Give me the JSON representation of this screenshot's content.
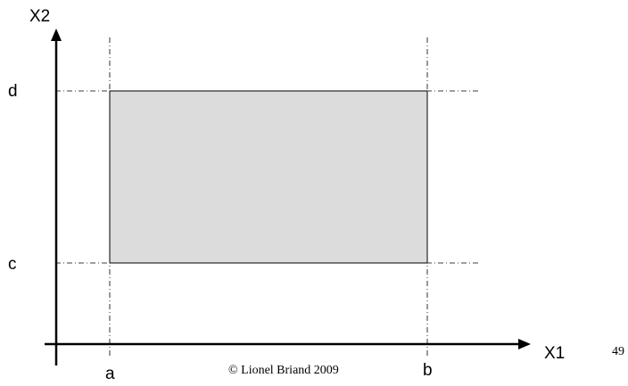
{
  "axes": {
    "y_label": "X2",
    "x_label": "X1"
  },
  "bounds": {
    "x_lower": "a",
    "x_upper": "b",
    "y_lower": "c",
    "y_upper": "d"
  },
  "footer": {
    "copyright": "© Lionel Briand 2009",
    "page_number": "49"
  },
  "colors": {
    "region_fill": "#dcdcdc",
    "line": "#000000"
  }
}
